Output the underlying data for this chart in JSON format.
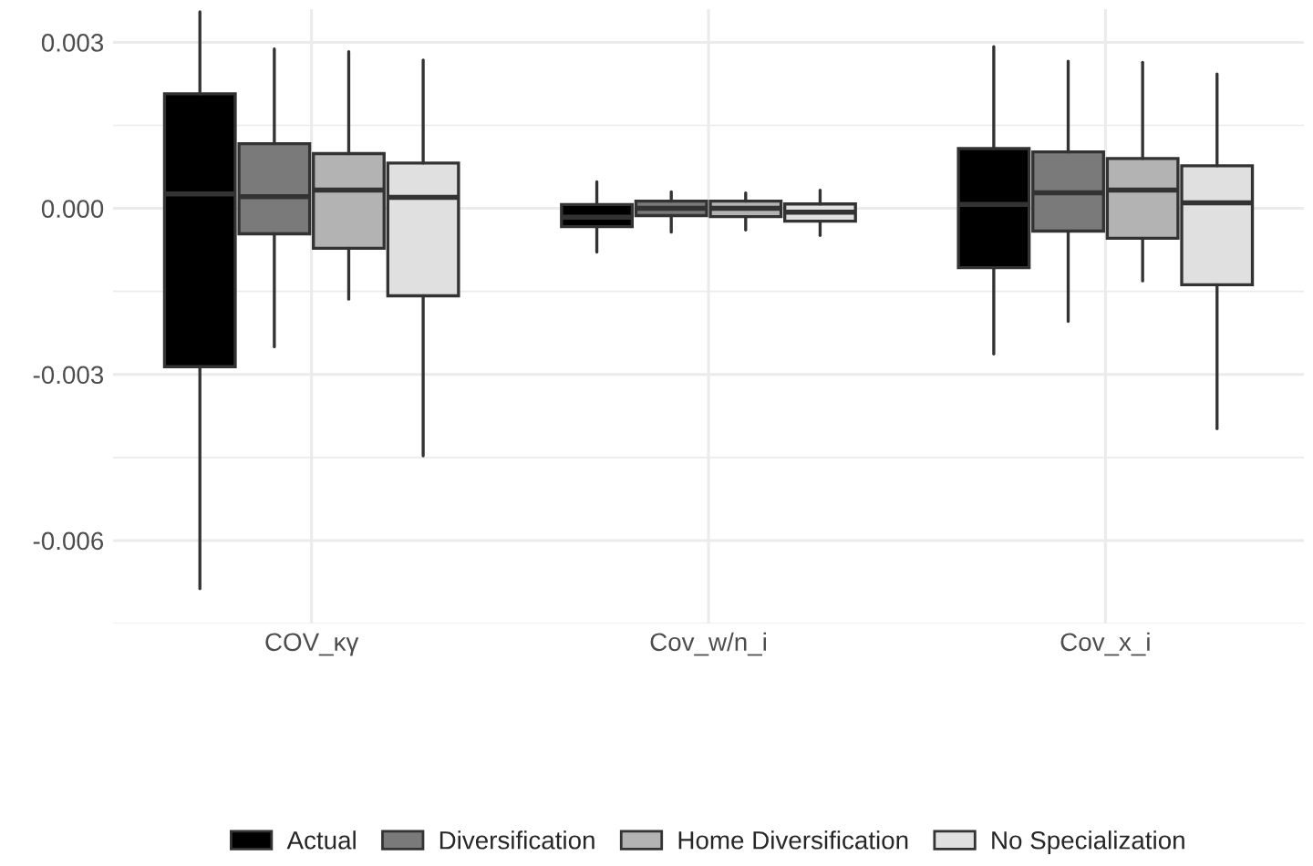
{
  "chart_data": {
    "type": "box",
    "categories": [
      "COV_κγ",
      "Cov_w/n_i",
      "Cov_x_i"
    ],
    "series": [
      {
        "name": "Actual",
        "color": "#000000",
        "boxes": [
          {
            "low": -0.00687,
            "q1": -0.00286,
            "median": 0.00026,
            "q3": 0.00207,
            "high": 0.00355
          },
          {
            "low": -0.00079,
            "q1": -0.00033,
            "median": -0.00016,
            "q3": 7e-05,
            "high": 0.00048
          },
          {
            "low": -0.00263,
            "q1": -0.00107,
            "median": 7e-05,
            "q3": 0.00108,
            "high": 0.00292
          }
        ]
      },
      {
        "name": "Diversification",
        "color": "#7a7a7a",
        "boxes": [
          {
            "low": -0.0025,
            "q1": -0.00046,
            "median": 0.00021,
            "q3": 0.00117,
            "high": 0.00288
          },
          {
            "low": -0.00043,
            "q1": -0.00013,
            "median": 0.0,
            "q3": 0.00013,
            "high": 0.0003
          },
          {
            "low": -0.00204,
            "q1": -0.00041,
            "median": 0.00028,
            "q3": 0.00102,
            "high": 0.00266
          }
        ]
      },
      {
        "name": "Home Diversification",
        "color": "#b3b3b3",
        "boxes": [
          {
            "low": -0.00164,
            "q1": -0.00072,
            "median": 0.00033,
            "q3": 0.00099,
            "high": 0.00283
          },
          {
            "low": -0.00039,
            "q1": -0.00015,
            "median": 0.0,
            "q3": 0.00013,
            "high": 0.00028
          },
          {
            "low": -0.00131,
            "q1": -0.00054,
            "median": 0.00033,
            "q3": 0.0009,
            "high": 0.00264
          }
        ]
      },
      {
        "name": "No Specialization",
        "color": "#e0e0e0",
        "boxes": [
          {
            "low": -0.00447,
            "q1": -0.00158,
            "median": 0.0002,
            "q3": 0.00082,
            "high": 0.00268
          },
          {
            "low": -0.00049,
            "q1": -0.00023,
            "median": -7e-05,
            "q3": 8e-05,
            "high": 0.00033
          },
          {
            "low": -0.00398,
            "q1": -0.00138,
            "median": 0.0001,
            "q3": 0.00077,
            "high": 0.00243
          }
        ]
      }
    ],
    "ylim": [
      -0.0075,
      0.0036
    ],
    "yticks": [
      {
        "value": -0.006,
        "label": "-0.006"
      },
      {
        "value": -0.003,
        "label": "-0.003"
      },
      {
        "value": 0,
        "label": "0.000"
      },
      {
        "value": 0.003,
        "label": "0.003"
      }
    ],
    "grid": true,
    "legend": "bottom"
  }
}
